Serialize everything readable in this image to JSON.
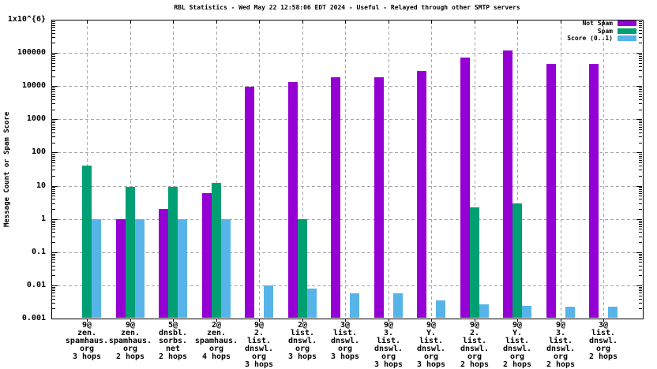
{
  "title": "RBL Statistics - Wed May 22 12:58:06 EDT 2024 - Useful - Relayed through other SMTP servers",
  "chart_data": {
    "type": "bar",
    "yscale": "log",
    "ylabel": "Message Count or Spam Score",
    "xlabel": "",
    "ylim": [
      0.001,
      1000000
    ],
    "ytick_labels": [
      "0.001",
      "0.01",
      "0.1",
      "1",
      "10",
      "100",
      "1000",
      "10000",
      "100000",
      "1x10^{6}"
    ],
    "grid": true,
    "legend_position": "top-right-inside",
    "grid_color": "#a8a8a8",
    "background": "#ffffff",
    "categories": [
      [
        "9@",
        "zen.",
        "spamhaus.",
        "org",
        "3 hops"
      ],
      [
        "9@",
        "zen.",
        "spamhaus.",
        "org",
        "2 hops"
      ],
      [
        "5@",
        "dnsbl.",
        "sorbs.",
        "net",
        "2 hops"
      ],
      [
        "2@",
        "zen.",
        "spamhaus.",
        "org",
        "4 hops"
      ],
      [
        "9@",
        "2.",
        "list.",
        "dnswl.",
        "org",
        "3 hops"
      ],
      [
        "2@",
        "list.",
        "dnswl.",
        "org",
        "3 hops"
      ],
      [
        "3@",
        "list.",
        "dnswl.",
        "org",
        "3 hops"
      ],
      [
        "9@",
        "3.",
        "list.",
        "dnswl.",
        "org",
        "3 hops"
      ],
      [
        "9@",
        "Y.",
        "list.",
        "dnswl.",
        "org",
        "3 hops"
      ],
      [
        "9@",
        "2.",
        "list.",
        "dnswl.",
        "org",
        "2 hops"
      ],
      [
        "9@",
        "Y.",
        "list.",
        "dnswl.",
        "org",
        "2 hops"
      ],
      [
        "9@",
        "3.",
        "list.",
        "dnswl.",
        "org",
        "2 hops"
      ],
      [
        "3@",
        "list.",
        "dnswl.",
        "org",
        "2 hops"
      ]
    ],
    "series": [
      {
        "name": "Not Spam",
        "color": "#9400d3",
        "values": [
          null,
          1,
          2,
          6,
          9800,
          13000,
          18000,
          18000,
          28000,
          72000,
          120000,
          46000,
          46000
        ]
      },
      {
        "name": "Spam",
        "color": "#009e73",
        "values": [
          40,
          9,
          9,
          12,
          null,
          1,
          null,
          null,
          null,
          2.2,
          3,
          null,
          null
        ]
      },
      {
        "name": "Score (0..1)",
        "color": "#56b4e9",
        "values": [
          1,
          1,
          1,
          1,
          0.0098,
          0.008,
          0.0057,
          0.0057,
          0.0035,
          0.0027,
          0.0024,
          0.0023,
          0.0023
        ]
      }
    ]
  }
}
